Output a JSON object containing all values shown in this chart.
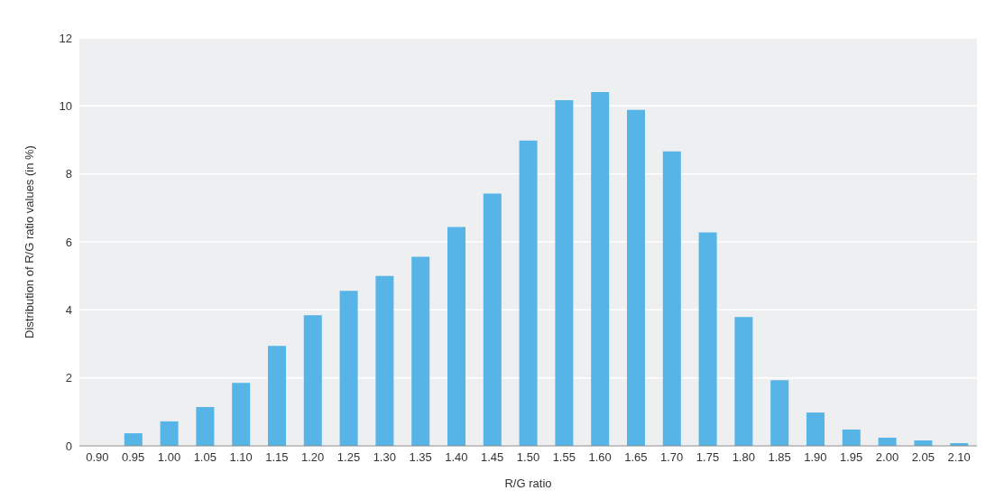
{
  "chart_data": {
    "type": "bar",
    "xlabel": "R/G ratio",
    "ylabel": "Distribution of R/G ratio values (in %)",
    "categories": [
      "0.90",
      "0.95",
      "1.00",
      "1.05",
      "1.10",
      "1.15",
      "1.20",
      "1.25",
      "1.30",
      "1.35",
      "1.40",
      "1.45",
      "1.50",
      "1.55",
      "1.60",
      "1.65",
      "1.70",
      "1.75",
      "1.80",
      "1.85",
      "1.90",
      "1.95",
      "2.00",
      "2.05",
      "2.10"
    ],
    "values": [
      0,
      0.37,
      0.72,
      1.14,
      1.85,
      2.94,
      3.84,
      4.56,
      5.0,
      5.56,
      6.44,
      7.42,
      8.98,
      10.17,
      10.41,
      9.88,
      8.66,
      6.28,
      3.79,
      1.93,
      0.98,
      0.48,
      0.24,
      0.16,
      0.08
    ],
    "color": "#56b4e6",
    "ylim": [
      0,
      12
    ],
    "yticks": [
      0,
      2,
      4,
      6,
      8,
      10,
      12
    ],
    "grid": "y"
  }
}
